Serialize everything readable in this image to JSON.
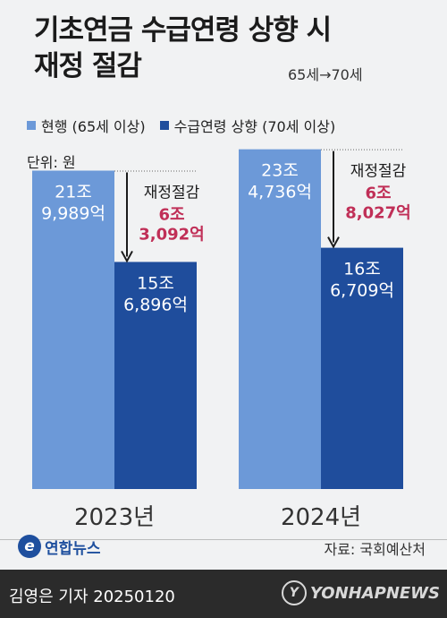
{
  "header": {
    "title_line1": "기초연금 수급연령 상향 시",
    "title_line2": "재정 절감",
    "subtitle": "65세→70세"
  },
  "legend": {
    "current": "현행 (65세 이상)",
    "raised": "수급연령 상향 (70세 이상)"
  },
  "unit": "단위: 원",
  "colors": {
    "current": "#6c99d8",
    "raised": "#1f4d9c",
    "savings_text": "#c02f57",
    "background": "#f1f2f3"
  },
  "chart_data": {
    "type": "bar",
    "categories": [
      "2023년",
      "2024년"
    ],
    "series": [
      {
        "name": "현행 (65세 이상)",
        "values": [
          219989,
          234736
        ],
        "labels": [
          [
            "21조",
            "9,989억"
          ],
          [
            "23조",
            "4,736억"
          ]
        ]
      },
      {
        "name": "수급연령 상향 (70세 이상)",
        "values": [
          156896,
          166709
        ],
        "labels": [
          [
            "15조",
            "6,896억"
          ],
          [
            "16조",
            "6,709억"
          ]
        ]
      }
    ],
    "annotations": [
      {
        "category": "2023년",
        "title": "재정절감",
        "value": 63092,
        "lines": [
          "6조",
          "3,092억"
        ]
      },
      {
        "category": "2024년",
        "title": "재정절감",
        "value": 68027,
        "lines": [
          "6조",
          "8,027억"
        ]
      }
    ],
    "unit": "억 원",
    "ylim": [
      0,
      250000
    ]
  },
  "footer": {
    "logo_text": "연합뉴스",
    "logo_mark": "e",
    "source": "자료: 국회예산처",
    "credit": "김영은 기자  20250120",
    "watermark": "YONHAPNEWS",
    "watermark_mark": "Y"
  }
}
